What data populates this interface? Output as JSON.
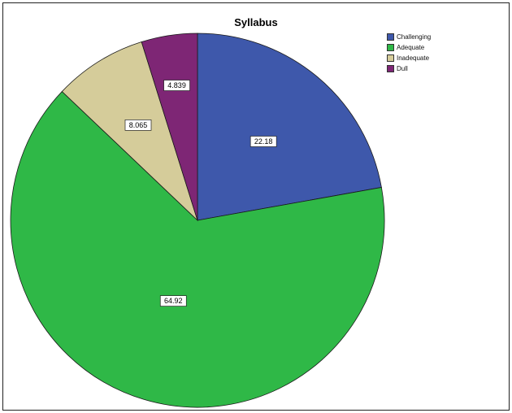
{
  "chart_data": {
    "type": "pie",
    "title": "Syllabus",
    "categories": [
      "Challenging",
      "Adequate",
      "Inadequate",
      "Dull"
    ],
    "values": [
      22.18,
      64.92,
      8.065,
      4.839
    ],
    "value_labels": [
      "22.18",
      "64.92",
      "8.065",
      "4.839"
    ],
    "colors": [
      "#3e58ab",
      "#2fb847",
      "#d5cc9a",
      "#7e2675"
    ],
    "start_angle": "12 o'clock",
    "direction": "clockwise",
    "legend_position": "top-right"
  }
}
